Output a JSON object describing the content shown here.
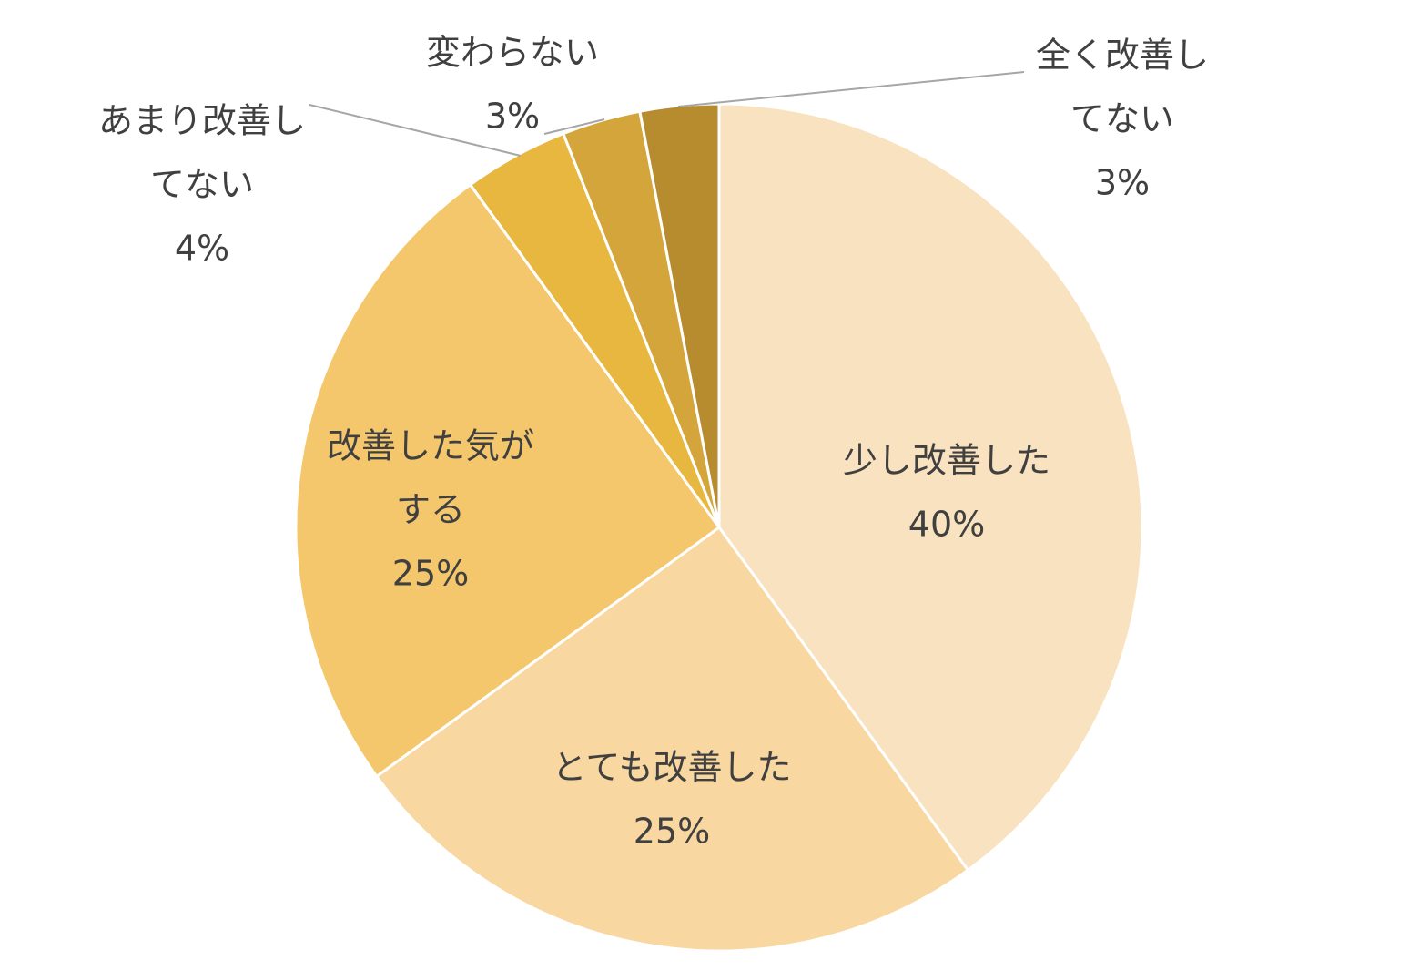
{
  "chart_data": {
    "type": "pie",
    "start_angle_deg": 0,
    "direction": "clockwise",
    "slice_border_color": "#ffffff",
    "label_color": "#404040",
    "leader_line_color": "#a6a6a6",
    "slices": [
      {
        "label_lines": [
          "少し改善した"
        ],
        "percent_label": "40%",
        "value": 40,
        "color": "#F9E2BF"
      },
      {
        "label_lines": [
          "とても改善した"
        ],
        "percent_label": "25%",
        "value": 25,
        "color": "#F8D7A0"
      },
      {
        "label_lines": [
          "改善した気が",
          "する"
        ],
        "percent_label": "25%",
        "value": 25,
        "color": "#F5C76C"
      },
      {
        "label_lines": [
          "あまり改善し",
          "てない"
        ],
        "percent_label": "4%",
        "value": 4,
        "color": "#E8B73F"
      },
      {
        "label_lines": [
          "変わらない"
        ],
        "percent_label": "3%",
        "value": 3,
        "color": "#D4A53A"
      },
      {
        "label_lines": [
          "全く改善し",
          "てない"
        ],
        "percent_label": "3%",
        "value": 3,
        "color": "#B68C2E"
      }
    ]
  }
}
